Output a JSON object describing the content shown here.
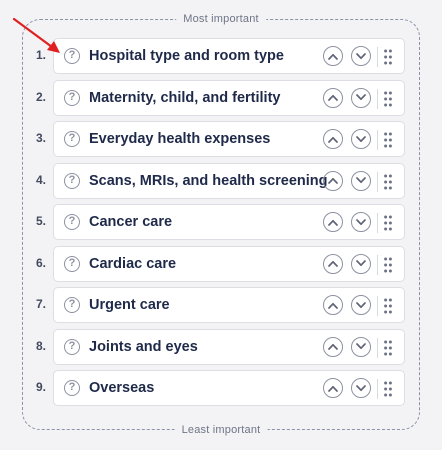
{
  "header_label": "Most important",
  "footer_label": "Least important",
  "help_glyph": "?",
  "annotation_color": "#e02020",
  "items": [
    {
      "rank": "1.",
      "label": "Hospital type and room type"
    },
    {
      "rank": "2.",
      "label": "Maternity, child, and fertility"
    },
    {
      "rank": "3.",
      "label": "Everyday health expenses"
    },
    {
      "rank": "4.",
      "label": "Scans, MRIs, and health screening"
    },
    {
      "rank": "5.",
      "label": "Cancer care"
    },
    {
      "rank": "6.",
      "label": "Cardiac care"
    },
    {
      "rank": "7.",
      "label": "Urgent care"
    },
    {
      "rank": "8.",
      "label": "Joints and eyes"
    },
    {
      "rank": "9.",
      "label": "Overseas"
    }
  ]
}
